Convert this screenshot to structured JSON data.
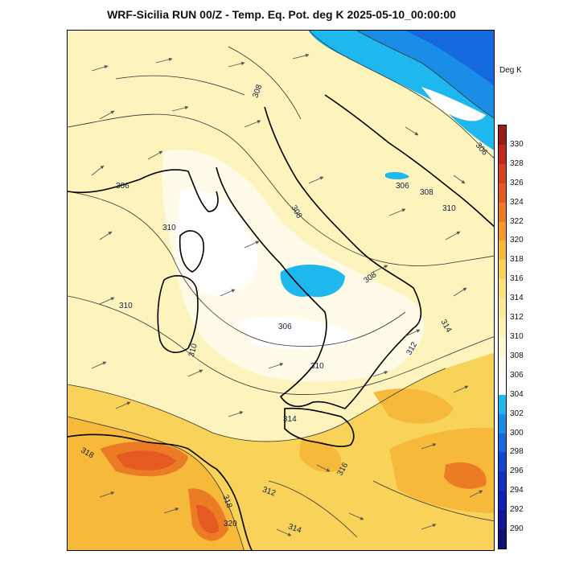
{
  "title": "WRF-Sicilia RUN 00/Z - Temp. Eq. Pot. deg K 2025-05-10_00:00:00",
  "legend": {
    "unit": "Deg K",
    "ticks": [
      "330",
      "328",
      "326",
      "324",
      "322",
      "320",
      "318",
      "316",
      "314",
      "312",
      "310",
      "308",
      "306",
      "304",
      "302",
      "300",
      "298",
      "296",
      "294",
      "292",
      "290"
    ],
    "colors": [
      "#9b1d18",
      "#bf2a1e",
      "#d8401f",
      "#e45a22",
      "#ec7b26",
      "#f29a2c",
      "#f6b93a",
      "#f9d25a",
      "#fbe27d",
      "#fcea98",
      "#fdf1b4",
      "#fef7d3",
      "#fffcee",
      "#ffffff",
      "#1fb8ee",
      "#1a8ee6",
      "#1569de",
      "#1247d3",
      "#1232c6",
      "#1124b4",
      "#121897",
      "#101178"
    ]
  },
  "contour_labels": [
    "308",
    "306",
    "310",
    "308",
    "306",
    "308",
    "310",
    "306",
    "310",
    "308",
    "306",
    "314",
    "310",
    "312",
    "310",
    "314",
    "316",
    "318",
    "312",
    "314",
    "318",
    "320"
  ],
  "colors": {
    "warm": "#f6b93a",
    "hot": "#e45a22",
    "cold": "#1a8ee6",
    "land_line": "#000000",
    "wind": "#555555"
  }
}
